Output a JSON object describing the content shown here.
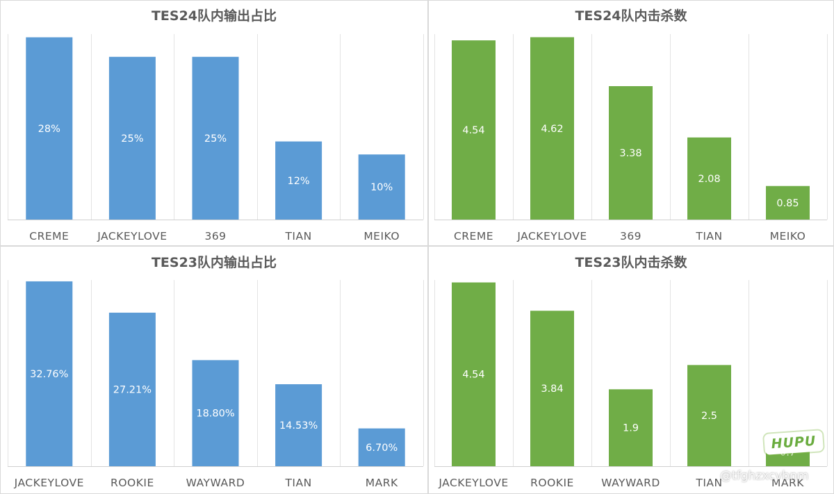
{
  "chart_data": [
    {
      "type": "bar",
      "title": "TES24队内输出占比",
      "categories": [
        "CREME",
        "JACKEYLOVE",
        "369",
        "TIAN",
        "MEIKO"
      ],
      "values": [
        28,
        25,
        25,
        12,
        10
      ],
      "labels": [
        "28%",
        "25%",
        "25%",
        "12%",
        "10%"
      ],
      "unit": "%",
      "ylim": [
        0,
        28.5
      ],
      "color": "#5b9bd5",
      "grid": "vertical",
      "legend": "none"
    },
    {
      "type": "bar",
      "title": "TES24队内击杀数",
      "categories": [
        "CREME",
        "JACKEYLOVE",
        "369",
        "TIAN",
        "MEIKO"
      ],
      "values": [
        4.54,
        4.62,
        3.38,
        2.08,
        0.85
      ],
      "labels": [
        "4.54",
        "4.62",
        "3.38",
        "2.08",
        "0.85"
      ],
      "ylim": [
        0,
        4.7
      ],
      "color": "#70ad47",
      "grid": "vertical",
      "legend": "none"
    },
    {
      "type": "bar",
      "title": "TES23队内输出占比",
      "categories": [
        "JACKEYLOVE",
        "ROOKIE",
        "WAYWARD",
        "TIAN",
        "MARK"
      ],
      "values": [
        32.76,
        27.21,
        18.8,
        14.53,
        6.7
      ],
      "labels": [
        "32.76%",
        "27.21%",
        "18.80%",
        "14.53%",
        "6.70%"
      ],
      "unit": "%",
      "ylim": [
        0,
        33
      ],
      "color": "#5b9bd5",
      "grid": "vertical",
      "legend": "none"
    },
    {
      "type": "bar",
      "title": "TES23队内击杀数",
      "categories": [
        "JACKEYLOVE",
        "ROOKIE",
        "WAYWARD",
        "TIAN",
        "MARK"
      ],
      "values": [
        4.54,
        3.84,
        1.9,
        2.5,
        0.7
      ],
      "labels": [
        "4.54",
        "3.84",
        "1.9",
        "2.5",
        "0.7"
      ],
      "ylim": [
        0,
        4.6
      ],
      "color": "#70ad47",
      "grid": "vertical",
      "legend": "none"
    }
  ],
  "watermark": {
    "logo_text": "HUPU",
    "user": "@tfghzxcvbnm"
  }
}
